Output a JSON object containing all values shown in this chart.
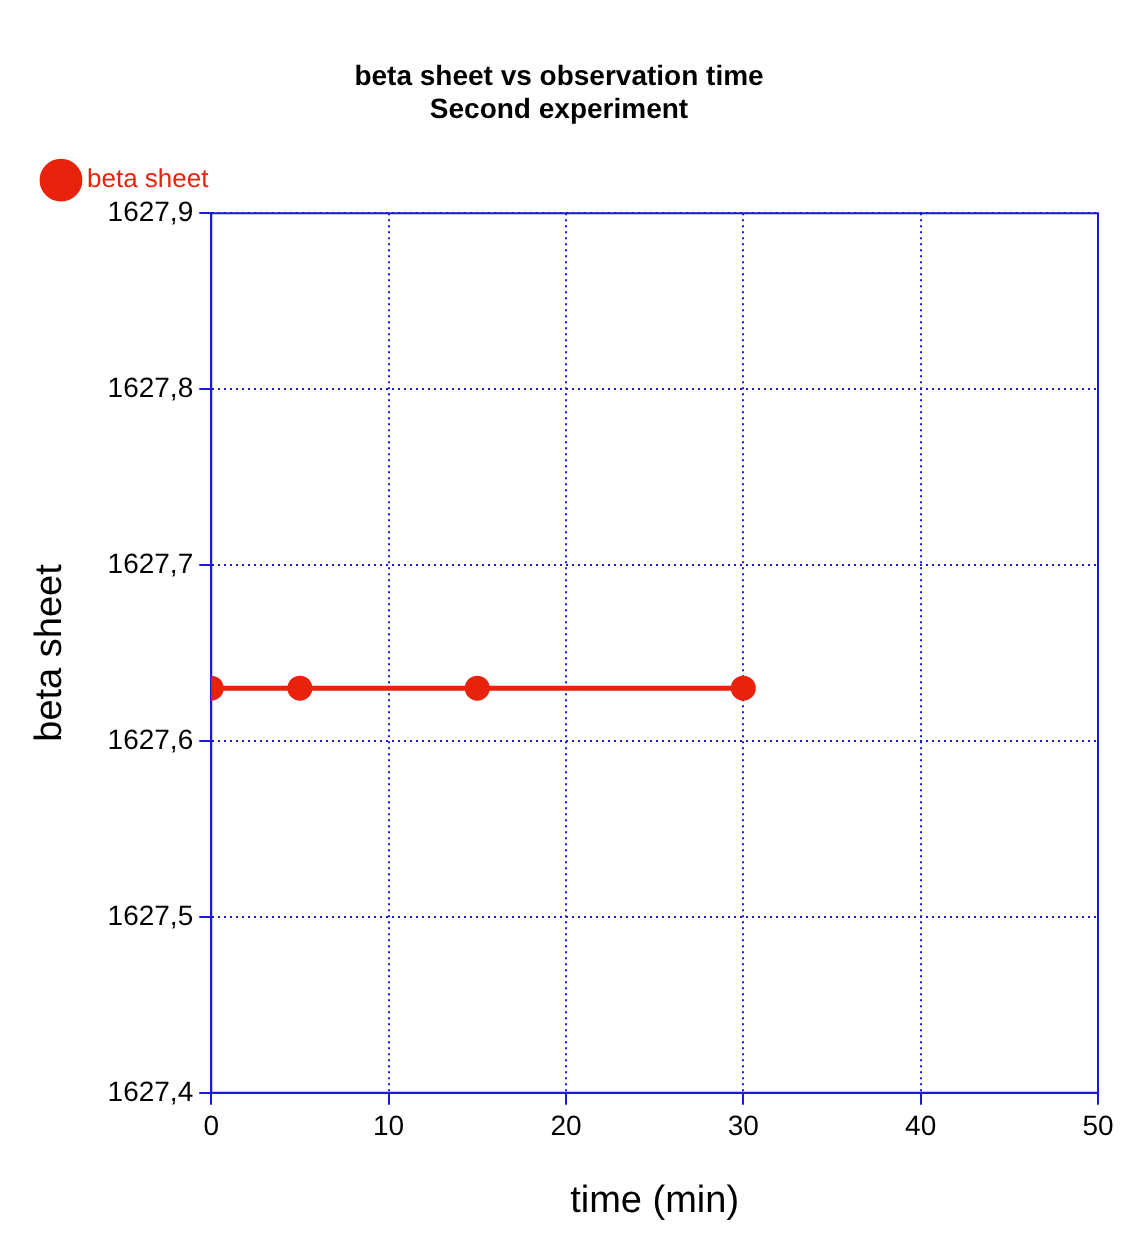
{
  "chart_data": {
    "type": "line",
    "title": "beta sheet vs observation time",
    "subtitle": "Second experiment",
    "xlabel": "time (min)",
    "ylabel": "beta sheet",
    "x": [
      0,
      5,
      15,
      30
    ],
    "series": [
      {
        "name": "beta sheet",
        "color": "#e8220c",
        "values": [
          1627.63,
          1627.63,
          1627.63,
          1627.63
        ]
      }
    ],
    "xlim": [
      0,
      50
    ],
    "xticks": [
      0,
      10,
      20,
      30,
      40,
      50
    ],
    "ylim": [
      1627.4,
      1627.9
    ],
    "yticks": [
      {
        "value": 1627.4,
        "label": "1627,4"
      },
      {
        "value": 1627.5,
        "label": "1627,5"
      },
      {
        "value": 1627.6,
        "label": "1627,6"
      },
      {
        "value": 1627.7,
        "label": "1627,7"
      },
      {
        "value": 1627.8,
        "label": "1627,8"
      },
      {
        "value": 1627.9,
        "label": "1627,9"
      }
    ],
    "grid": true,
    "legend": "top left",
    "marker": "circle",
    "line_style": "solid"
  }
}
